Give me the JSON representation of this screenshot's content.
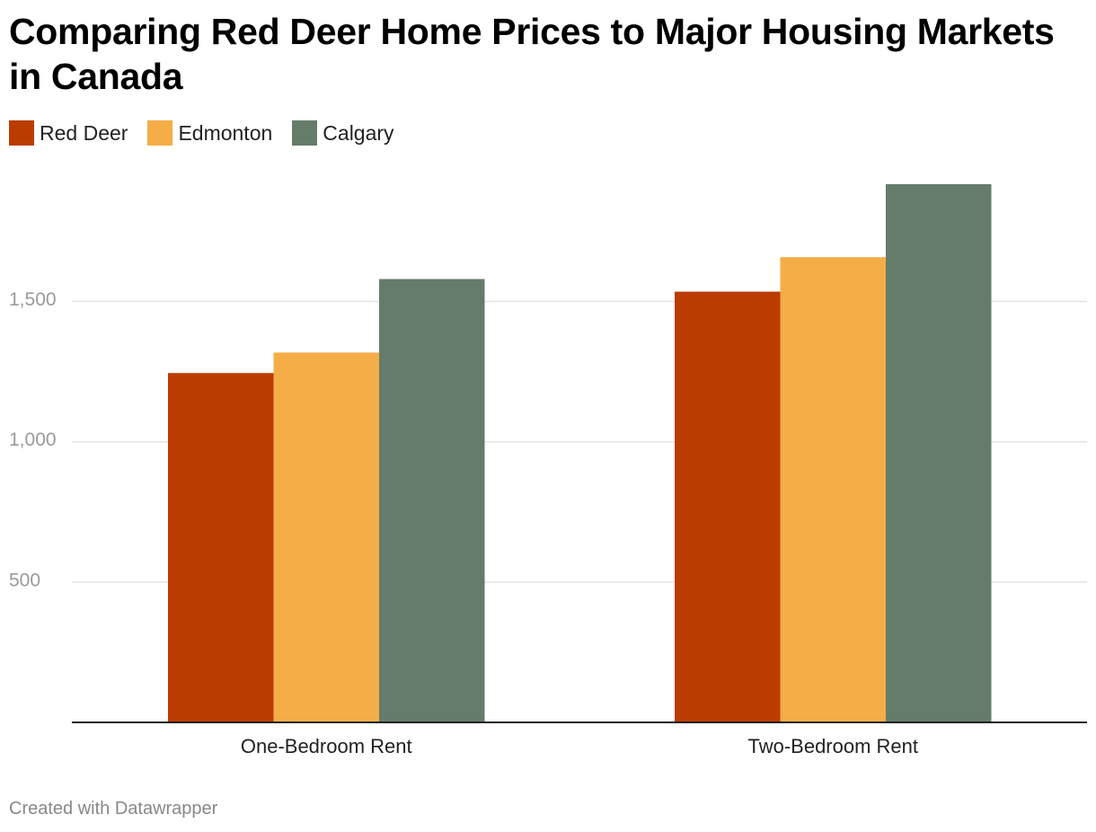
{
  "chart_data": {
    "type": "bar",
    "title": "Comparing Red Deer Home Prices to Major Housing Markets in Canada",
    "categories": [
      "One-Bedroom Rent",
      "Two-Bedroom Rent"
    ],
    "series": [
      {
        "name": "Red Deer",
        "color": "#bb3c00",
        "values": [
          1245,
          1535
        ]
      },
      {
        "name": "Edmonton",
        "color": "#f5ad47",
        "values": [
          1318,
          1658
        ]
      },
      {
        "name": "Calgary",
        "color": "#657c6a",
        "values": [
          1580,
          1918
        ]
      }
    ],
    "xlabel": "",
    "ylabel": "",
    "ylim": [
      0,
      1918
    ],
    "yticks": [
      500,
      1000,
      1500
    ],
    "ytick_labels": [
      "500",
      "1,000",
      "1,500"
    ],
    "grid": true,
    "legend": "top-left"
  },
  "footer": {
    "credit": "Created with Datawrapper"
  }
}
